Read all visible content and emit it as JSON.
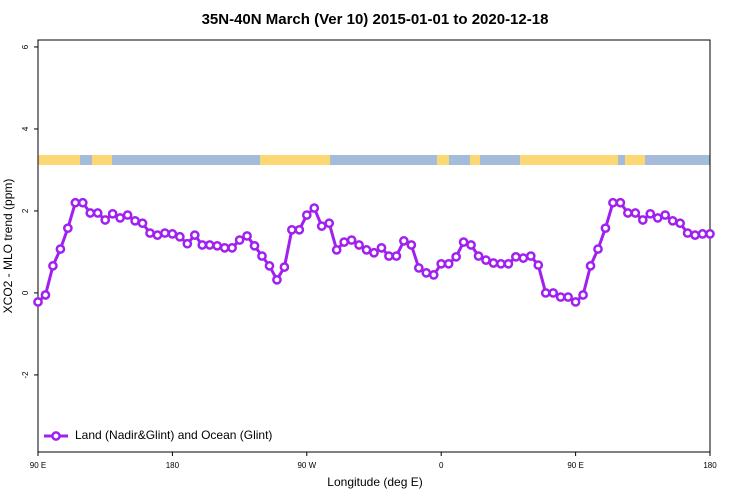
{
  "chart_data": {
    "type": "line",
    "title": "35N-40N March (Ver 10)   2015-01-01 to 2020-12-18",
    "xlabel": "Longitude (deg E)",
    "ylabel": "XCO2 - MLO trend (ppm)",
    "xlim": [
      90,
      540
    ],
    "ylim": [
      -3.88,
      6.17
    ],
    "xticks": [
      {
        "value": 90,
        "label": "90 E"
      },
      180,
      {
        "value": 270,
        "label": "90 W"
      },
      {
        "value": 360,
        "label": "0"
      },
      {
        "value": 450,
        "label": "90 E"
      },
      {
        "value": 540,
        "label": "180"
      }
    ],
    "yticks": [
      -2,
      0,
      2,
      4,
      6
    ],
    "legend": "bottom-left",
    "x": [
      90,
      95,
      100,
      105,
      110,
      115,
      120,
      125,
      130,
      135,
      140,
      145,
      150,
      155,
      160,
      165,
      170,
      175,
      180,
      185,
      190,
      195,
      200,
      205,
      210,
      215,
      220,
      225,
      230,
      235,
      240,
      245,
      250,
      255,
      260,
      265,
      270,
      275,
      280,
      285,
      290,
      295,
      300,
      305,
      310,
      315,
      320,
      325,
      330,
      335,
      340,
      345,
      350,
      355,
      360,
      365,
      370,
      375,
      380,
      385,
      390,
      395,
      400,
      405,
      410,
      415,
      420,
      425,
      430,
      435,
      440,
      445,
      450,
      455,
      460,
      465,
      470,
      475,
      480,
      485,
      490,
      495,
      500,
      505,
      510,
      515,
      520,
      525,
      530,
      535,
      540
    ],
    "series": [
      {
        "name": "Land (Nadir&Glint) and Ocean (Glint)",
        "color": "#a020f0",
        "values": [
          -0.22,
          -0.05,
          0.66,
          1.07,
          1.58,
          2.2,
          2.2,
          1.95,
          1.95,
          1.78,
          1.93,
          1.83,
          1.9,
          1.76,
          1.7,
          1.46,
          1.41,
          1.46,
          1.44,
          1.37,
          1.2,
          1.41,
          1.17,
          1.17,
          1.15,
          1.1,
          1.1,
          1.29,
          1.39,
          1.15,
          0.9,
          0.66,
          0.32,
          0.63,
          1.54,
          1.54,
          1.9,
          2.07,
          1.63,
          1.7,
          1.05,
          1.24,
          1.29,
          1.17,
          1.05,
          0.98,
          1.1,
          0.9,
          0.9,
          1.27,
          1.17,
          0.61,
          0.49,
          0.44,
          0.71,
          0.71,
          0.88,
          1.24,
          1.17,
          0.9,
          0.8,
          0.73,
          0.71,
          0.71,
          0.88,
          0.85,
          0.9,
          0.68,
          0.0,
          0.0,
          -0.1,
          -0.1,
          -0.22,
          -0.05,
          0.66,
          1.07,
          1.58,
          2.2,
          2.2,
          1.95,
          1.95,
          1.78,
          1.93,
          1.83,
          1.9,
          1.76,
          1.7,
          1.46,
          1.41,
          1.44,
          1.44
        ]
      }
    ]
  }
}
